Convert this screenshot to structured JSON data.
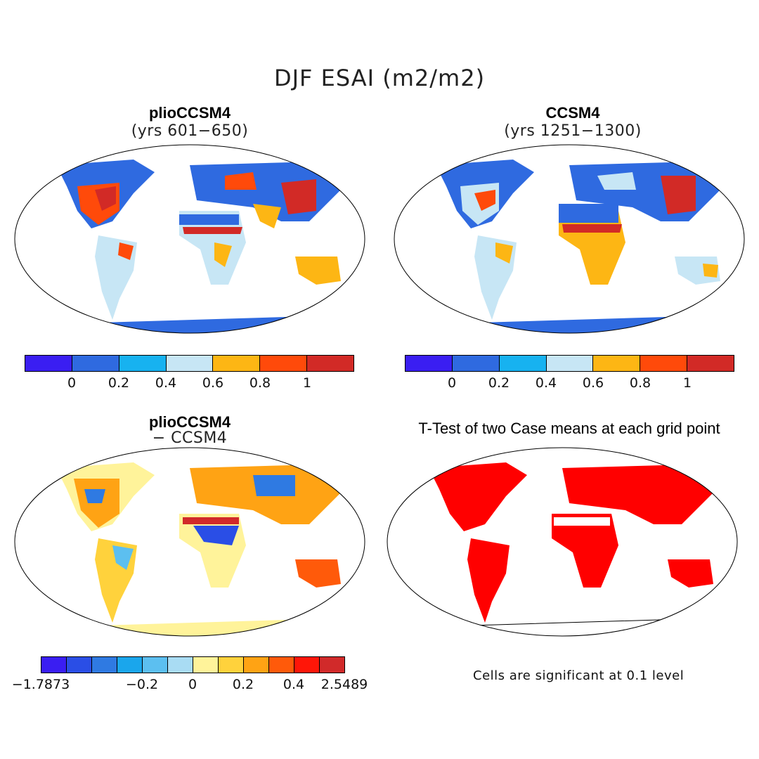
{
  "main_title": "DJF ESAI (m2/m2)",
  "panels": [
    {
      "title": "plioCCSM4",
      "subtitle": "(yrs 601−650)",
      "colorbar": {
        "colors": [
          "#3a1ef2",
          "#2f6ae0",
          "#17b2f0",
          "#c7e6f5",
          "#fdb614",
          "#ff4a0a",
          "#d22a26"
        ],
        "ticks": [
          "0",
          "0.2",
          "0.4",
          "0.6",
          "0.8",
          "1"
        ]
      }
    },
    {
      "title": "CCSM4",
      "subtitle": "(yrs 1251−1300)",
      "colorbar": {
        "colors": [
          "#3a1ef2",
          "#2f6ae0",
          "#17b2f0",
          "#c7e6f5",
          "#fdb614",
          "#ff4a0a",
          "#d22a26"
        ],
        "ticks": [
          "0",
          "0.2",
          "0.4",
          "0.6",
          "0.8",
          "1"
        ]
      }
    },
    {
      "title": "plioCCSM4",
      "subtitle": "− CCSM4",
      "colorbar": {
        "colors": [
          "#3a1ef2",
          "#2a4ee6",
          "#2f7ae2",
          "#1aa6ec",
          "#5cbff0",
          "#a9dcf3",
          "#fff39a",
          "#ffd23c",
          "#ffa314",
          "#ff5a0a",
          "#ff1608",
          "#d12a2a"
        ],
        "ticks": [
          "−1.7873",
          "−0.2",
          "0",
          "0.2",
          "0.4",
          "2.5489"
        ]
      }
    },
    {
      "title": "T-Test of two Case means at each grid point",
      "note": "Cells are significant at 0.1 level"
    }
  ]
}
